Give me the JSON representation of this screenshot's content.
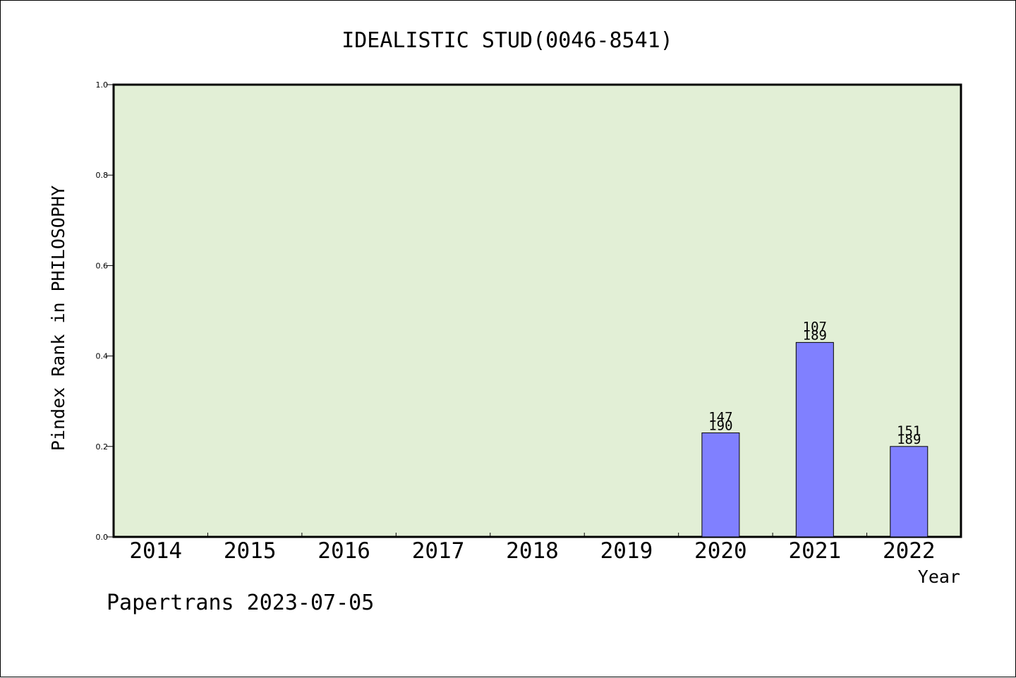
{
  "chart_data": {
    "type": "bar",
    "title": "IDEALISTIC STUD(0046-8541)",
    "xlabel": "Year",
    "ylabel": "Pindex Rank in PHILOSOPHY",
    "categories": [
      "2014",
      "2015",
      "2016",
      "2017",
      "2018",
      "2019",
      "2020",
      "2021",
      "2022"
    ],
    "values": [
      null,
      null,
      null,
      null,
      null,
      null,
      0.23,
      0.43,
      0.2
    ],
    "bar_labels": [
      null,
      null,
      null,
      null,
      null,
      null,
      {
        "rank": "147",
        "total": "190"
      },
      {
        "rank": "107",
        "total": "189"
      },
      {
        "rank": "151",
        "total": "189"
      }
    ],
    "ylim": [
      0,
      1.0
    ],
    "yticks": [
      "0.0",
      "0.2",
      "0.4",
      "0.6",
      "0.8",
      "1.0"
    ],
    "ytick_values": [
      0,
      0.2,
      0.4,
      0.6,
      0.8,
      1.0
    ],
    "grid": false,
    "legend": "none",
    "colors": {
      "plot_background": "#e2efd6",
      "bar_fill": "#8080ff",
      "bar_stroke": "#000000",
      "axis": "#000000"
    }
  },
  "footer": {
    "watermark": "Papertrans 2023-07-05"
  }
}
